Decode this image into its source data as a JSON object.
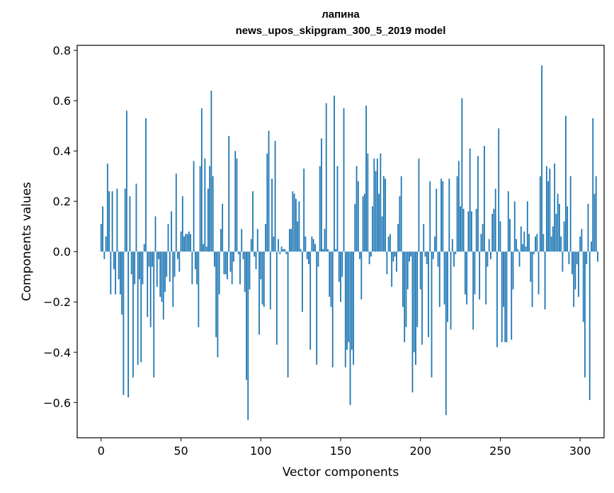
{
  "chart_data": {
    "type": "bar",
    "title": "лапина",
    "subtitle": "news_upos_skipgram_300_5_2019 model",
    "xlabel": "Vector components",
    "ylabel": "Components values",
    "xlim": [
      -15,
      315
    ],
    "ylim": [
      -0.74,
      0.82
    ],
    "xticks": [
      0,
      50,
      100,
      150,
      200,
      250,
      300
    ],
    "xtick_labels": [
      "0",
      "50",
      "100",
      "150",
      "200",
      "250",
      "300"
    ],
    "yticks": [
      -0.6,
      -0.4,
      -0.2,
      0.0,
      0.2,
      0.4,
      0.6,
      0.8
    ],
    "ytick_labels": [
      "−0.6",
      "−0.4",
      "−0.2",
      "0.0",
      "0.2",
      "0.4",
      "0.6",
      "0.8"
    ],
    "grid": false,
    "color": "#1f77b4",
    "values": [
      0.11,
      0.18,
      -0.03,
      0.06,
      0.35,
      0.24,
      -0.17,
      0.24,
      -0.07,
      -0.17,
      0.25,
      -0.11,
      -0.17,
      -0.25,
      -0.57,
      0.25,
      0.56,
      -0.58,
      0.22,
      -0.09,
      -0.5,
      -0.13,
      0.27,
      -0.45,
      -0.11,
      -0.44,
      -0.13,
      0.03,
      0.53,
      -0.26,
      -0.06,
      -0.3,
      -0.06,
      -0.5,
      0.14,
      -0.14,
      -0.03,
      -0.18,
      -0.2,
      -0.27,
      -0.16,
      -0.1,
      0.11,
      -0.12,
      0.16,
      -0.22,
      -0.1,
      0.31,
      -0.03,
      -0.08,
      0.08,
      0.22,
      0.06,
      0.07,
      0.07,
      0.08,
      0.07,
      -0.13,
      0.36,
      -0.07,
      -0.13,
      -0.3,
      0.34,
      0.57,
      0.03,
      0.37,
      0.02,
      0.25,
      0.34,
      0.64,
      0.3,
      -0.06,
      -0.34,
      -0.42,
      -0.17,
      0.09,
      0.19,
      -0.09,
      -0.09,
      -0.11,
      0.46,
      -0.08,
      -0.13,
      -0.04,
      0.4,
      0.37,
      -0.01,
      -0.13,
      0.09,
      -0.03,
      -0.16,
      -0.51,
      -0.67,
      -0.15,
      0.05,
      0.24,
      -0.02,
      -0.07,
      0.09,
      -0.33,
      -0.11,
      -0.21,
      -0.22,
      0.11,
      0.39,
      0.48,
      -0.23,
      0.29,
      0.06,
      0.44,
      -0.37,
      0.05,
      -0.01,
      0.02,
      0.01,
      0.01,
      -0.01,
      -0.5,
      0.09,
      0.09,
      0.24,
      0.23,
      0.21,
      0.12,
      0.2,
      0.01,
      -0.24,
      0.33,
      0.06,
      -0.03,
      -0.05,
      -0.39,
      0.06,
      0.05,
      0.03,
      -0.45,
      -0.06,
      0.34,
      0.45,
      0.01,
      0.09,
      0.59,
      0.01,
      -0.18,
      -0.22,
      -0.46,
      0.62,
      0.01,
      0.34,
      -0.12,
      -0.2,
      -0.1,
      0.57,
      -0.46,
      -0.39,
      -0.36,
      -0.61,
      -0.39,
      -0.45,
      0.19,
      0.34,
      0.28,
      -0.03,
      -0.19,
      0.22,
      0.23,
      0.58,
      0.39,
      -0.05,
      -0.02,
      0.18,
      0.37,
      0.32,
      0.37,
      0.23,
      0.39,
      0.14,
      0.3,
      0.29,
      -0.09,
      0.06,
      0.07,
      -0.14,
      -0.04,
      -0.02,
      -0.08,
      0.11,
      0.22,
      0.3,
      -0.22,
      -0.36,
      -0.3,
      -0.15,
      -0.04,
      -0.02,
      -0.56,
      -0.4,
      -0.45,
      -0.3,
      0.37,
      -0.15,
      -0.37,
      0.11,
      -0.02,
      -0.05,
      -0.34,
      0.28,
      -0.5,
      -0.03,
      0.06,
      0.25,
      -0.06,
      -0.22,
      0.29,
      0.28,
      -0.21,
      -0.65,
      -0.28,
      0.29,
      -0.31,
      0.05,
      -0.06,
      -0.01,
      0.3,
      0.36,
      0.18,
      0.61,
      0.17,
      -0.17,
      -0.21,
      0.16,
      0.41,
      0.16,
      -0.31,
      -0.17,
      0.17,
      0.38,
      -0.19,
      0.07,
      0.11,
      0.42,
      -0.21,
      -0.06,
      0.05,
      -0.03,
      0.15,
      0.17,
      0.25,
      -0.38,
      0.49,
      0.12,
      -0.36,
      -0.22,
      -0.36,
      -0.36,
      0.24,
      0.13,
      -0.35,
      -0.15,
      0.2,
      0.05,
      0.01,
      -0.06,
      0.1,
      0.03,
      0.08,
      0.02,
      0.2,
      0.07,
      -0.12,
      -0.22,
      -0.01,
      0.06,
      0.07,
      -0.17,
      0.3,
      0.74,
      0.07,
      -0.23,
      0.34,
      0.28,
      0.33,
      0.06,
      0.1,
      0.35,
      0.15,
      0.23,
      0.19,
      0.06,
      -0.08,
      0.12,
      0.54,
      0.18,
      -0.05,
      0.3,
      -0.09,
      -0.22,
      -0.15,
      -0.05,
      -0.18,
      0.06,
      0.09,
      -0.28,
      -0.5,
      -0.05,
      0.19,
      -0.59,
      0.04,
      0.53,
      0.23,
      0.3,
      -0.04
    ]
  }
}
